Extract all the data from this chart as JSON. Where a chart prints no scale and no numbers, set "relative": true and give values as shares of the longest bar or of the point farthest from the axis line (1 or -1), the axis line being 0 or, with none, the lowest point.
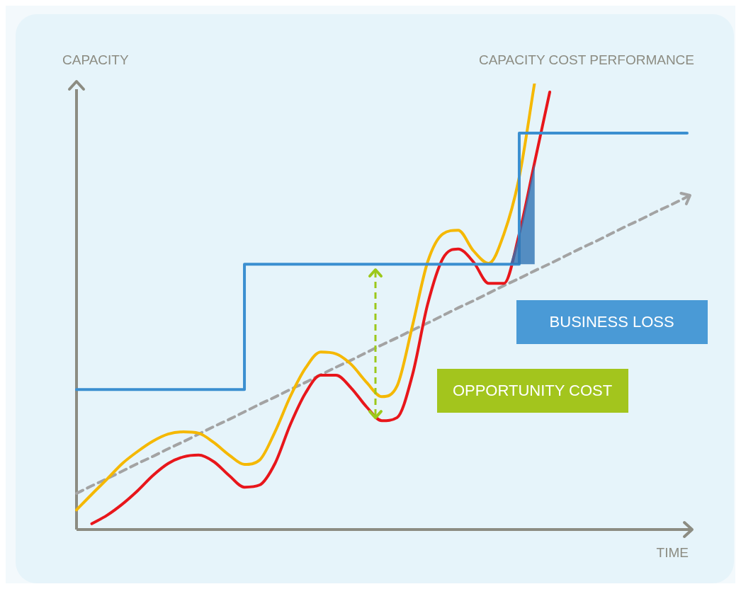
{
  "chart_data": {
    "type": "line",
    "title": "CAPACITY COST PERFORMANCE",
    "xlabel": "TIME",
    "ylabel": "CAPACITY",
    "relative": true,
    "grid": false,
    "legend": false,
    "marker": "none",
    "annotations": [
      "BUSINESS LOSS",
      "OPPORTUNITY COST"
    ],
    "categories": [
      null,
      null,
      null,
      null,
      null,
      null,
      null,
      null,
      null,
      null,
      null,
      null,
      null,
      null,
      null,
      null,
      null,
      null,
      null,
      null,
      null,
      null,
      null,
      null,
      null,
      null,
      null,
      null,
      null,
      null,
      null,
      null,
      null,
      null,
      null,
      null,
      null,
      null,
      null,
      null,
      null
    ],
    "series": [
      {
        "type": "step",
        "color": "#3b8fd0",
        "values": [
          0.314,
          0.314,
          0.314,
          0.314,
          0.314,
          0.314,
          0.314,
          0.314,
          0.314,
          0.314,
          0.314,
          0.314,
          0.595,
          0.595,
          0.595,
          0.595,
          0.595,
          0.595,
          0.595,
          0.595,
          0.595,
          0.595,
          0.595,
          0.595,
          0.595,
          0.595,
          0.595,
          0.595,
          0.595,
          0.595,
          0.889,
          0.889,
          0.889,
          0.889,
          0.889,
          0.889,
          0.889,
          0.889,
          0.889,
          0.889,
          0.889
        ]
      },
      {
        "type": "line",
        "color": "#f5b800",
        "values": [
          0.044,
          0.079,
          0.113,
          0.148,
          0.175,
          0.198,
          0.214,
          0.219,
          0.216,
          0.195,
          0.167,
          0.146,
          0.156,
          0.219,
          0.298,
          0.362,
          0.398,
          0.394,
          0.37,
          0.33,
          0.298,
          0.322,
          0.456,
          0.6,
          0.663,
          0.671,
          0.625,
          0.597,
          0.663,
          0.79,
          1.0,
          null,
          null,
          null,
          null,
          null,
          null,
          null,
          null,
          null,
          null
        ]
      },
      {
        "type": "line",
        "color": "#e8161b",
        "values": [
          null,
          0.013,
          0.032,
          0.057,
          0.087,
          0.121,
          0.148,
          0.163,
          0.167,
          0.152,
          0.121,
          0.095,
          0.1,
          0.148,
          0.235,
          0.306,
          0.346,
          0.346,
          0.317,
          0.275,
          0.244,
          0.251,
          0.346,
          0.505,
          0.608,
          0.629,
          0.6,
          0.552,
          0.552,
          0.663,
          0.822,
          0.981,
          null,
          null,
          null,
          null,
          null,
          null,
          null,
          null,
          null
        ]
      },
      {
        "type": "line",
        "color": "#a3a3a3",
        "line_style": "dashed",
        "values": [
          0.081,
          0.098,
          0.114,
          0.131,
          0.148,
          0.164,
          0.181,
          0.197,
          0.214,
          0.231,
          0.247,
          0.264,
          0.281,
          0.297,
          0.314,
          0.33,
          0.347,
          0.364,
          0.38,
          0.397,
          0.414,
          0.43,
          0.447,
          0.463,
          0.48,
          0.497,
          0.513,
          0.53,
          0.547,
          0.563,
          0.58,
          0.596,
          0.613,
          0.63,
          0.646,
          0.663,
          0.68,
          0.696,
          0.713,
          0.729,
          0.746
        ]
      }
    ]
  }
}
